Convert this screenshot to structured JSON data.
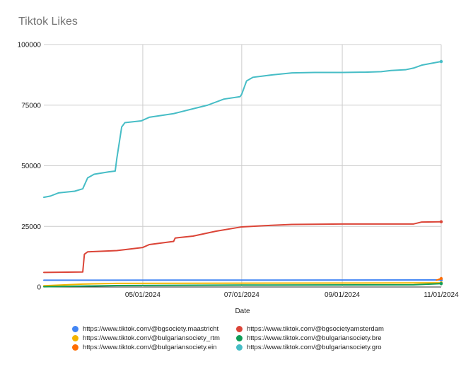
{
  "chart_data": {
    "type": "line",
    "title": "Tiktok Likes",
    "xlabel": "Date",
    "ylabel": "",
    "ylim": [
      0,
      100000
    ],
    "xlim": [
      "2024-03-01",
      "2024-11-01"
    ],
    "yticks": [
      "0",
      "25000",
      "50000",
      "75000",
      "100000"
    ],
    "xticks": [
      {
        "date": "2024-05-01",
        "label": "05/01/2024"
      },
      {
        "date": "2024-07-01",
        "label": "07/01/2024"
      },
      {
        "date": "2024-09-01",
        "label": "09/01/2024"
      },
      {
        "date": "2024-11-01",
        "label": "11/01/2024"
      }
    ],
    "grid": true,
    "legend_position": "bottom",
    "series": [
      {
        "name": "https://www.tiktok.com/@bgsociety.maastricht",
        "color": "#4285F4",
        "points": [
          [
            "2024-03-01",
            2800
          ],
          [
            "2024-11-01",
            2900
          ]
        ]
      },
      {
        "name": "https://www.tiktok.com/@bgsocietyamsterdam",
        "color": "#DB4437",
        "points": [
          [
            "2024-03-01",
            6000
          ],
          [
            "2024-03-25",
            6200
          ],
          [
            "2024-03-26",
            13500
          ],
          [
            "2024-03-28",
            14500
          ],
          [
            "2024-04-15",
            15000
          ],
          [
            "2024-05-01",
            16300
          ],
          [
            "2024-05-05",
            17500
          ],
          [
            "2024-05-20",
            18800
          ],
          [
            "2024-05-21",
            20200
          ],
          [
            "2024-06-01",
            21000
          ],
          [
            "2024-06-15",
            23000
          ],
          [
            "2024-07-01",
            24800
          ],
          [
            "2024-07-15",
            25300
          ],
          [
            "2024-08-01",
            25800
          ],
          [
            "2024-09-01",
            26000
          ],
          [
            "2024-10-15",
            26000
          ],
          [
            "2024-10-20",
            26800
          ],
          [
            "2024-11-01",
            26900
          ]
        ]
      },
      {
        "name": "https://www.tiktok.com/@bulgariansociety_rtm",
        "color": "#F4B400",
        "points": [
          [
            "2024-03-01",
            500
          ],
          [
            "2024-03-25",
            1200
          ],
          [
            "2024-04-15",
            1500
          ],
          [
            "2024-11-01",
            1700
          ]
        ]
      },
      {
        "name": "https://www.tiktok.com/@bulgariansociety.bre",
        "color": "#0F9D58",
        "points": [
          [
            "2024-03-01",
            100
          ],
          [
            "2024-04-15",
            600
          ],
          [
            "2024-07-01",
            800
          ],
          [
            "2024-10-15",
            900
          ],
          [
            "2024-11-01",
            1400
          ]
        ]
      },
      {
        "name": "https://www.tiktok.com/@bulgariansociety.ein",
        "color": "#FF6D00",
        "points": [
          [
            "2024-10-29",
            2800
          ],
          [
            "2024-11-01",
            3500
          ]
        ]
      },
      {
        "name": "https://www.tiktok.com/@bulgariansociety.gro",
        "color": "#46BDC6",
        "points": [
          [
            "2024-03-01",
            37000
          ],
          [
            "2024-03-05",
            37500
          ],
          [
            "2024-03-10",
            38800
          ],
          [
            "2024-03-20",
            39500
          ],
          [
            "2024-03-25",
            40500
          ],
          [
            "2024-03-28",
            45000
          ],
          [
            "2024-04-01",
            46500
          ],
          [
            "2024-04-10",
            47500
          ],
          [
            "2024-04-14",
            47800
          ],
          [
            "2024-04-15",
            53000
          ],
          [
            "2024-04-18",
            66000
          ],
          [
            "2024-04-20",
            67800
          ],
          [
            "2024-04-30",
            68500
          ],
          [
            "2024-05-05",
            70000
          ],
          [
            "2024-05-20",
            71500
          ],
          [
            "2024-06-01",
            73500
          ],
          [
            "2024-06-10",
            75000
          ],
          [
            "2024-06-20",
            77500
          ],
          [
            "2024-06-30",
            78500
          ],
          [
            "2024-07-01",
            79500
          ],
          [
            "2024-07-04",
            85000
          ],
          [
            "2024-07-08",
            86500
          ],
          [
            "2024-07-20",
            87500
          ],
          [
            "2024-08-01",
            88300
          ],
          [
            "2024-08-15",
            88500
          ],
          [
            "2024-09-01",
            88500
          ],
          [
            "2024-09-15",
            88600
          ],
          [
            "2024-09-25",
            88800
          ],
          [
            "2024-10-01",
            89300
          ],
          [
            "2024-10-10",
            89600
          ],
          [
            "2024-10-15",
            90300
          ],
          [
            "2024-10-20",
            91500
          ],
          [
            "2024-11-01",
            93000
          ]
        ]
      }
    ]
  }
}
